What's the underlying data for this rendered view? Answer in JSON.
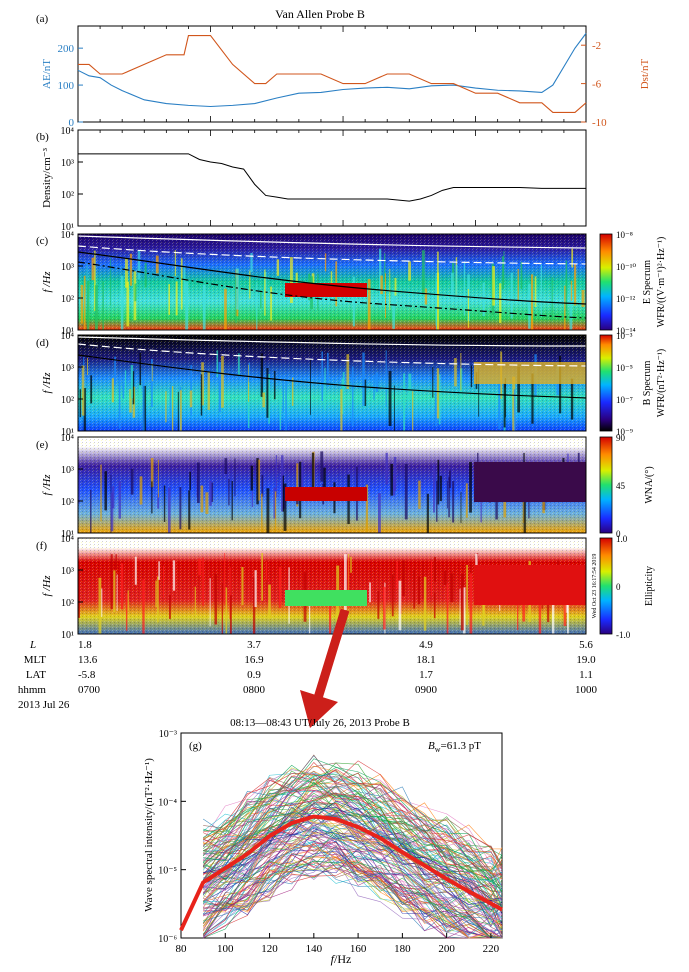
{
  "figure": {
    "title": "Van Allen Probe B",
    "arrow_color": "#cc1f1a"
  },
  "chart_data": [
    {
      "id": "a",
      "type": "line",
      "panel_label": "(a)",
      "ylabel_left": "AE/nT",
      "ylabel_right": "Dst/nT",
      "ylim_left": [
        0,
        260
      ],
      "yticks_left": [
        "0",
        "100",
        "200"
      ],
      "ylim_right": [
        -10,
        0
      ],
      "yticks_right": [
        "-2",
        "-6",
        "-10"
      ],
      "xlim_minutes": [
        0,
        230
      ],
      "series": [
        {
          "name": "AE",
          "color": "#2a7fc4",
          "axis": "left",
          "x": [
            0,
            5,
            10,
            15,
            20,
            30,
            40,
            50,
            60,
            70,
            80,
            90,
            100,
            110,
            120,
            130,
            140,
            150,
            160,
            170,
            180,
            190,
            200,
            205,
            210,
            215,
            220,
            225,
            230
          ],
          "y": [
            140,
            125,
            120,
            100,
            85,
            60,
            50,
            45,
            42,
            45,
            50,
            65,
            78,
            80,
            88,
            92,
            94,
            90,
            98,
            100,
            92,
            86,
            84,
            82,
            80,
            100,
            150,
            200,
            240
          ]
        },
        {
          "name": "Dst",
          "color": "#d1561c",
          "axis": "right",
          "x": [
            0,
            5,
            10,
            15,
            20,
            30,
            40,
            48,
            50,
            55,
            60,
            70,
            80,
            85,
            90,
            100,
            110,
            120,
            130,
            140,
            150,
            160,
            170,
            180,
            190,
            200,
            210,
            215,
            220,
            225,
            230
          ],
          "y": [
            -4,
            -4,
            -5,
            -5,
            -5,
            -4,
            -3,
            -3,
            -1,
            -1,
            -1,
            -4,
            -6,
            -6,
            -5,
            -5,
            -5,
            -6,
            -6,
            -5,
            -5,
            -6,
            -6,
            -7,
            -7,
            -8,
            -8,
            -9,
            -9,
            -9,
            -8
          ]
        }
      ]
    },
    {
      "id": "b",
      "type": "line",
      "panel_label": "(b)",
      "ylabel": "Density/cm⁻³",
      "yscale": "log",
      "ylim": [
        10,
        10000
      ],
      "yticks": [
        "10¹",
        "10²",
        "10³",
        "10⁴"
      ],
      "series": [
        {
          "name": "density",
          "color": "#000000",
          "x": [
            0,
            20,
            40,
            50,
            55,
            60,
            65,
            70,
            75,
            80,
            85,
            90,
            95,
            100,
            110,
            120,
            130,
            140,
            150,
            155,
            160,
            165,
            170,
            180,
            190,
            200,
            210,
            220,
            230
          ],
          "y": [
            1800,
            1800,
            1800,
            1800,
            1200,
            1000,
            900,
            700,
            600,
            200,
            90,
            80,
            70,
            70,
            70,
            70,
            70,
            70,
            60,
            70,
            90,
            130,
            160,
            160,
            160,
            160,
            150,
            150,
            150
          ]
        }
      ]
    },
    {
      "id": "c",
      "type": "heatmap",
      "panel_label": "(c)",
      "ylabel": "f /Hz",
      "yscale": "log",
      "ylim": [
        10,
        10000
      ],
      "yticks": [
        "10¹",
        "10²",
        "10³",
        "10⁴"
      ],
      "colorbar": {
        "label_line1": "E Specrum",
        "label_line2": "WFR/((V·m⁻¹)²·Hz⁻¹)",
        "ticks": [
          "10⁻⁸",
          "10⁻¹⁰",
          "10⁻¹²",
          "10⁻¹⁴"
        ],
        "scale": "jet"
      }
    },
    {
      "id": "d",
      "type": "heatmap",
      "panel_label": "(d)",
      "ylabel": "f /Hz",
      "yscale": "log",
      "ylim": [
        10,
        10000
      ],
      "yticks": [
        "10¹",
        "10²",
        "10³",
        "10⁴"
      ],
      "colorbar": {
        "label_line1": "B Specrum",
        "label_line2": "WFR/(nT²·Hz⁻¹)",
        "ticks": [
          "10⁻³",
          "10⁻⁵",
          "10⁻⁷",
          "10⁻⁹"
        ],
        "scale": "jet"
      }
    },
    {
      "id": "e",
      "type": "heatmap",
      "panel_label": "(e)",
      "ylabel": "f /Hz",
      "yscale": "log",
      "ylim": [
        10,
        10000
      ],
      "yticks": [
        "10¹",
        "10²",
        "10³",
        "10⁴"
      ],
      "colorbar": {
        "label_line1": "WNA/(°)",
        "ticks": [
          "90",
          "45",
          "0"
        ],
        "scale": "jet"
      }
    },
    {
      "id": "f",
      "type": "heatmap",
      "panel_label": "(f)",
      "ylabel": "f /Hz",
      "yscale": "log",
      "ylim": [
        10,
        10000
      ],
      "yticks": [
        "10¹",
        "10²",
        "10³",
        "10⁴"
      ],
      "colorbar": {
        "label_line1": "Ellipticity",
        "ticks": [
          "1.0",
          "0",
          "-1.0"
        ],
        "scale": "jet"
      },
      "stamp": "Wed Oct 23 16:17:54 2019"
    },
    {
      "id": "g",
      "type": "line",
      "panel_label": "(g)",
      "title": "08:13—08:43 UT/July 26, 2013 Probe B",
      "annotation_main": "B",
      "annotation_sub": "w",
      "annotation_value": "=61.3 pT",
      "xlabel_main": "f",
      "xlabel_rest": "/Hz",
      "ylabel": "Wave spectral intensity/(nT²·Hz⁻¹)",
      "xlim": [
        80,
        225
      ],
      "xticks": [
        "80",
        "100",
        "120",
        "140",
        "160",
        "180",
        "200",
        "220"
      ],
      "yscale": "log",
      "ylim": [
        1e-06,
        0.001
      ],
      "yticks": [
        "10⁻⁶",
        "10⁻⁵",
        "10⁻⁴",
        "10⁻³"
      ],
      "series": [
        {
          "name": "average",
          "color": "#e8231b",
          "x": [
            80,
            90,
            100,
            110,
            120,
            130,
            140,
            150,
            160,
            170,
            180,
            190,
            200,
            210,
            220,
            225
          ],
          "y": [
            1.3e-06,
            6.5e-06,
            1.05e-05,
            1.7e-05,
            3.1e-05,
            4.8e-05,
            6e-05,
            5.5e-05,
            4.2e-05,
            2.9e-05,
            1.8e-05,
            1.15e-05,
            7.3e-06,
            4.8e-06,
            3.2e-06,
            2.6e-06
          ]
        }
      ]
    }
  ],
  "ephemeris": {
    "rows": [
      {
        "label": "L",
        "values": [
          "1.8",
          "3.7",
          "4.9",
          "5.6"
        ]
      },
      {
        "label": "MLT",
        "values": [
          "13.6",
          "16.9",
          "18.1",
          "19.0"
        ]
      },
      {
        "label": "LAT",
        "values": [
          "-5.8",
          "0.9",
          "1.7",
          "1.1"
        ]
      },
      {
        "label": "hhmm",
        "values": [
          "0700",
          "0800",
          "0900",
          "1000"
        ]
      }
    ],
    "date": "2013 Jul 26"
  }
}
